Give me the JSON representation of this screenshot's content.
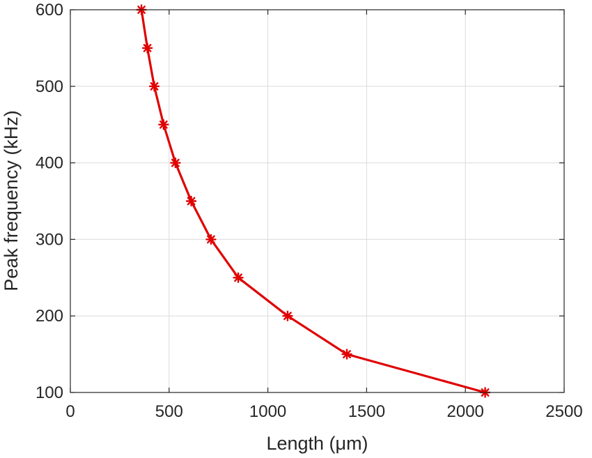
{
  "chart_data": {
    "type": "line",
    "xlabel": "Length (μm)",
    "ylabel": "Peak frequency (kHz)",
    "xlim": [
      0,
      2500
    ],
    "ylim": [
      100,
      600
    ],
    "xticks": [
      0,
      500,
      1000,
      1500,
      2000,
      2500
    ],
    "yticks": [
      100,
      200,
      300,
      400,
      500,
      600
    ],
    "grid": true,
    "series": [
      {
        "color": "#e00000",
        "marker": "asterisk",
        "points": [
          {
            "x": 360,
            "y": 600
          },
          {
            "x": 390,
            "y": 550
          },
          {
            "x": 425,
            "y": 500
          },
          {
            "x": 472,
            "y": 450
          },
          {
            "x": 532,
            "y": 400
          },
          {
            "x": 612,
            "y": 350
          },
          {
            "x": 712,
            "y": 300
          },
          {
            "x": 850,
            "y": 250
          },
          {
            "x": 1100,
            "y": 200
          },
          {
            "x": 1400,
            "y": 150
          },
          {
            "x": 2100,
            "y": 100
          }
        ]
      }
    ]
  }
}
